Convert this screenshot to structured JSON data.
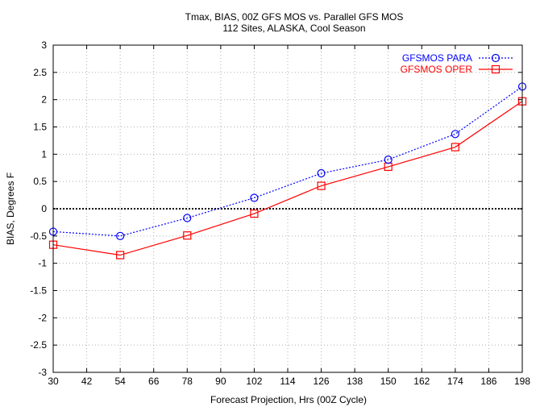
{
  "chart_data": {
    "type": "line",
    "title": "Tmax, BIAS, 00Z GFS MOS vs. Parallel GFS MOS",
    "subtitle": "112 Sites, ALASKA, Cool Season",
    "xlabel": "Forecast Projection, Hrs (00Z Cycle)",
    "ylabel": "BIAS, Degrees F",
    "xlim": [
      30,
      198
    ],
    "ylim": [
      -3,
      3
    ],
    "x_ticks": [
      30,
      42,
      54,
      66,
      78,
      90,
      102,
      114,
      126,
      138,
      150,
      162,
      174,
      186,
      198
    ],
    "y_ticks": [
      -3,
      -2.5,
      -2,
      -1.5,
      -1,
      -0.5,
      0,
      0.5,
      1,
      1.5,
      2,
      2.5,
      3
    ],
    "grid": true,
    "legend_position": "top-right",
    "reference_line": 0,
    "x": [
      30,
      54,
      78,
      102,
      126,
      150,
      174,
      198
    ],
    "series": [
      {
        "name": "GFSMOS PARA",
        "color": "#0000ff",
        "line_style": "dotted",
        "marker": "circle",
        "values": [
          -0.42,
          -0.5,
          -0.17,
          0.2,
          0.65,
          0.9,
          1.37,
          2.24
        ]
      },
      {
        "name": "GFSMOS OPER",
        "color": "#ff0000",
        "line_style": "solid",
        "marker": "square",
        "values": [
          -0.66,
          -0.85,
          -0.49,
          -0.09,
          0.42,
          0.77,
          1.13,
          1.97
        ]
      }
    ]
  }
}
